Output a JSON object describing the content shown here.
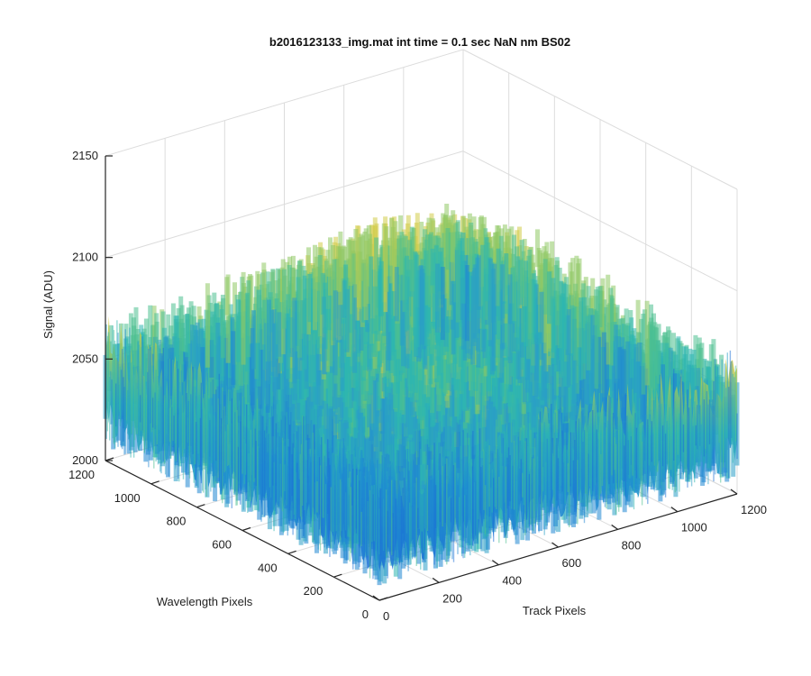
{
  "chart_data": {
    "type": "surface",
    "title": "b2016123133_img.mat int time = 0.1 sec  NaN nm BS02",
    "zlabel": "Signal (ADU)",
    "xlabel": "Track Pixels",
    "ylabel": "Wavelength Pixels",
    "z_ticks": [
      "2000",
      "2050",
      "2100",
      "2150"
    ],
    "x_ticks": [
      "0",
      "200",
      "400",
      "600",
      "800",
      "1000",
      "1200"
    ],
    "y_ticks": [
      "0",
      "200",
      "400",
      "600",
      "800",
      "1000",
      "1200"
    ],
    "zlim": [
      2000,
      2150
    ],
    "xlim": [
      0,
      1200
    ],
    "ylim": [
      0,
      1200
    ],
    "grid": true,
    "colormap": "parula",
    "colors": {
      "low": "#1f77d4",
      "mid": "#2fb8a8",
      "high": "#e8d34a"
    }
  }
}
